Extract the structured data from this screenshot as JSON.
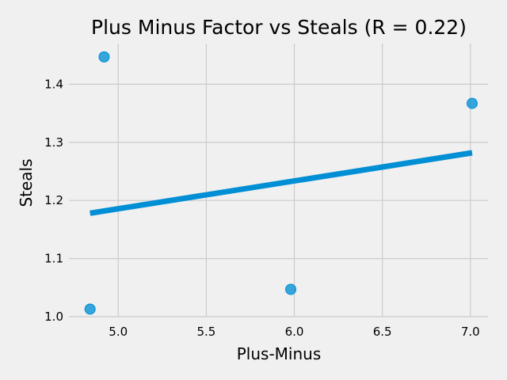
{
  "chart_data": {
    "type": "scatter",
    "title": "Plus Minus Factor vs Steals (R = 0.22)",
    "xlabel": "Plus-Minus",
    "ylabel": "Steals",
    "xlim": [
      4.72,
      7.1
    ],
    "ylim": [
      1.0,
      1.47
    ],
    "x_ticks": [
      5.0,
      5.5,
      6.0,
      6.5,
      7.0
    ],
    "y_ticks": [
      1.0,
      1.1,
      1.2,
      1.3,
      1.4
    ],
    "x_tick_labels": [
      "5.0",
      "5.5",
      "6.0",
      "6.5",
      "7.0"
    ],
    "y_tick_labels": [
      "1.0",
      "1.1",
      "1.2",
      "1.3",
      "1.4"
    ],
    "grid": true,
    "points": [
      {
        "x": 4.84,
        "y": 1.013
      },
      {
        "x": 4.92,
        "y": 1.447
      },
      {
        "x": 5.98,
        "y": 1.047
      },
      {
        "x": 7.01,
        "y": 1.367
      }
    ],
    "trendline": {
      "x": [
        4.84,
        7.01
      ],
      "y": [
        1.178,
        1.282
      ]
    },
    "colors": {
      "point": "#008fd5",
      "line": "#008fd5",
      "grid": "#cbcbcb",
      "background": "#f0f0f0"
    }
  }
}
